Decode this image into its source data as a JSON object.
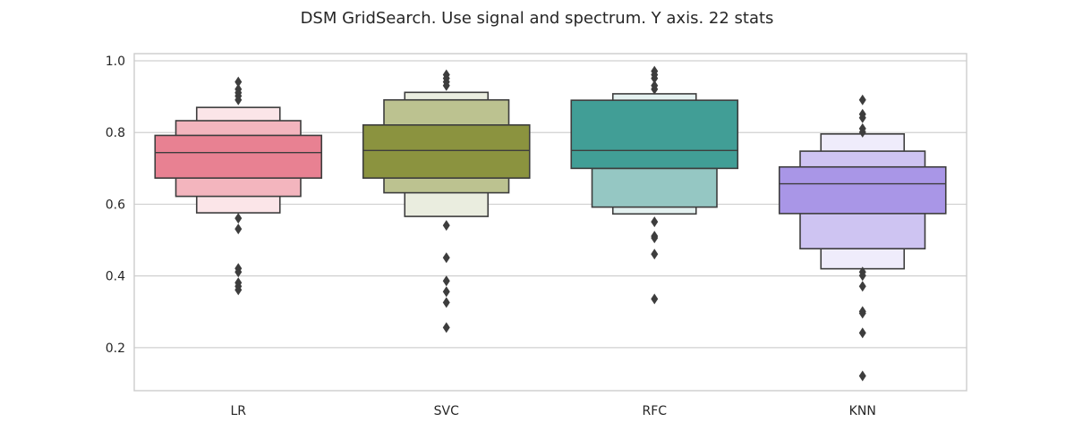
{
  "chart_data": {
    "type": "boxen",
    "title": "DSM GridSearch. Use signal and spectrum. Y axis. 22 stats",
    "xlabel": "",
    "ylabel": "",
    "ylim": [
      0.08,
      1.02
    ],
    "yticks": [
      {
        "value": 0.2,
        "label": "0.2"
      },
      {
        "value": 0.4,
        "label": "0.4"
      },
      {
        "value": 0.6,
        "label": "0.6"
      },
      {
        "value": 0.8,
        "label": "0.8"
      },
      {
        "value": 1.0,
        "label": "1.0"
      }
    ],
    "grid": "horizontal",
    "categories": [
      "LR",
      "SVC",
      "RFC",
      "KNN"
    ],
    "groups": [
      {
        "category": "LR",
        "median": 0.744,
        "levels": [
          {
            "low": 0.673,
            "high": 0.792,
            "color": "#e88192"
          },
          {
            "low": 0.622,
            "high": 0.833,
            "color": "#f3b5be"
          },
          {
            "low": 0.576,
            "high": 0.87,
            "color": "#fbe5e8"
          }
        ],
        "outliers": [
          0.941,
          0.921,
          0.911,
          0.902,
          0.891,
          0.561,
          0.531,
          0.421,
          0.411,
          0.381,
          0.371,
          0.361
        ]
      },
      {
        "category": "SVC",
        "median": 0.75,
        "levels": [
          {
            "low": 0.673,
            "high": 0.821,
            "color": "#8b933f"
          },
          {
            "low": 0.632,
            "high": 0.891,
            "color": "#bcc290"
          },
          {
            "low": 0.566,
            "high": 0.912,
            "color": "#eaeddf"
          }
        ],
        "outliers": [
          0.961,
          0.951,
          0.941,
          0.931,
          0.541,
          0.451,
          0.386,
          0.356,
          0.326,
          0.256
        ]
      },
      {
        "category": "RFC",
        "median": 0.75,
        "levels": [
          {
            "low": 0.7,
            "high": 0.89,
            "color": "#419e96"
          },
          {
            "low": 0.592,
            "high": 0.7,
            "color": "#95c7c3"
          },
          {
            "low": 0.573,
            "high": 0.908,
            "color": "#e4f1f0"
          }
        ],
        "outliers": [
          0.971,
          0.961,
          0.951,
          0.931,
          0.921,
          0.551,
          0.511,
          0.506,
          0.461,
          0.336
        ]
      },
      {
        "category": "KNN",
        "median": 0.657,
        "levels": [
          {
            "low": 0.574,
            "high": 0.704,
            "color": "#a996e7"
          },
          {
            "low": 0.476,
            "high": 0.748,
            "color": "#cec4f2"
          },
          {
            "low": 0.42,
            "high": 0.796,
            "color": "#efecfb"
          }
        ],
        "outliers": [
          0.891,
          0.851,
          0.841,
          0.811,
          0.801,
          0.411,
          0.401,
          0.371,
          0.301,
          0.296,
          0.241,
          0.121
        ]
      }
    ]
  }
}
